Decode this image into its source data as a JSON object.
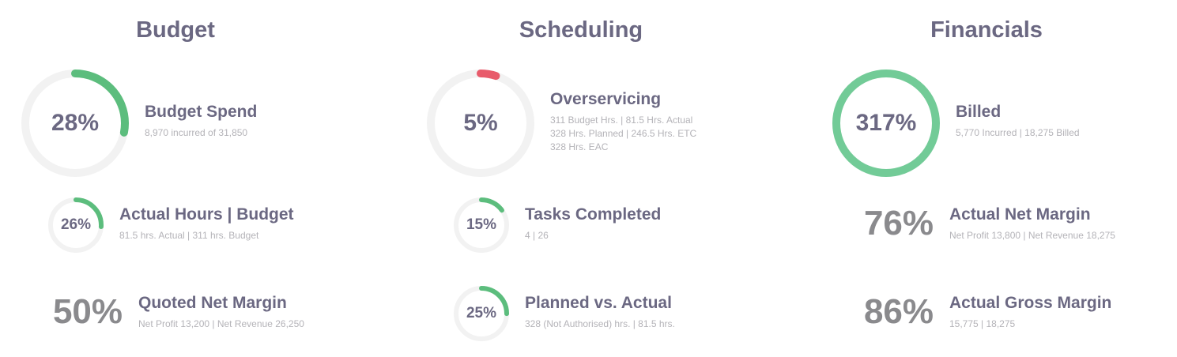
{
  "colors": {
    "track": "#f2f2f2",
    "good": "#5cbd7d",
    "bad": "#e85b6b",
    "billed": "#72cb97",
    "title": "#6b6882",
    "sub": "#b4b3b8",
    "bigpct": "#8a8a8d"
  },
  "budget": {
    "title": "Budget",
    "budget_spend": {
      "pct_label": "28%",
      "value": 28,
      "status": "good",
      "title": "Budget Spend",
      "sub": [
        "8,970 incurred of 31,850"
      ]
    },
    "actual_hours": {
      "pct_label": "26%",
      "value": 26,
      "status": "good",
      "title": "Actual Hours | Budget",
      "sub": [
        "81.5 hrs. Actual | 311 hrs. Budget"
      ]
    },
    "quoted_net_margin": {
      "pct_label": "50%",
      "title": "Quoted Net Margin",
      "sub": [
        "Net Profit 13,200 | Net Revenue 26,250"
      ]
    }
  },
  "scheduling": {
    "title": "Scheduling",
    "overservicing": {
      "pct_label": "5%",
      "value": 5,
      "status": "bad",
      "title": "Overservicing",
      "sub": [
        "311 Budget Hrs. | 81.5 Hrs. Actual",
        "328 Hrs. Planned | 246.5 Hrs. ETC",
        "328 Hrs. EAC"
      ]
    },
    "tasks_completed": {
      "pct_label": "15%",
      "value": 15,
      "status": "good",
      "title": "Tasks Completed",
      "sub": [
        "4 | 26"
      ]
    },
    "planned_vs_actual": {
      "pct_label": "25%",
      "value": 25,
      "status": "good",
      "title": "Planned vs. Actual",
      "sub": [
        "328 (Not Authorised) hrs. | 81.5 hrs."
      ]
    }
  },
  "financials": {
    "title": "Financials",
    "billed": {
      "pct_label": "317%",
      "value": 317,
      "status": "billed",
      "title": "Billed",
      "sub": [
        "5,770 Incurred | 18,275 Billed"
      ]
    },
    "actual_net_margin": {
      "pct_label": "76%",
      "title": "Actual Net Margin",
      "sub": [
        "Net Profit 13,800 | Net Revenue 18,275"
      ]
    },
    "actual_gross_margin": {
      "pct_label": "86%",
      "title": "Actual Gross Margin",
      "sub": [
        "15,775 | 18,275"
      ]
    }
  }
}
